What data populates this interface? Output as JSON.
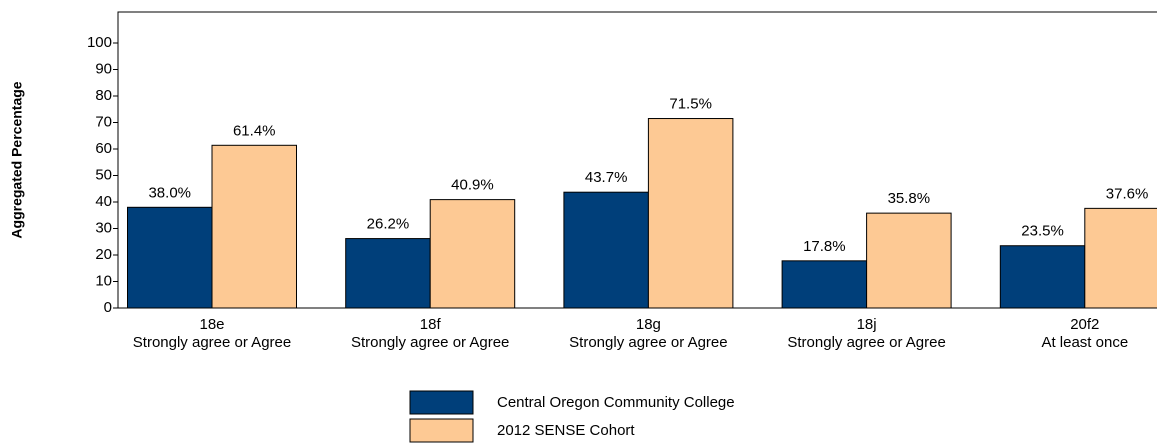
{
  "chart_data": {
    "type": "bar",
    "y_label": "Aggregated Percentage",
    "categories": [
      [
        "18e",
        "Strongly agree or Agree"
      ],
      [
        "18f",
        "Strongly agree or Agree"
      ],
      [
        "18g",
        "Strongly agree or Agree"
      ],
      [
        "18j",
        "Strongly agree or Agree"
      ],
      [
        "20f2",
        "At least once"
      ]
    ],
    "series": [
      {
        "name": "Central Oregon Community College",
        "color": "#003f7a",
        "values": [
          38.0,
          26.2,
          43.7,
          17.8,
          23.5
        ],
        "value_labels": [
          "38.0%",
          "26.2%",
          "43.7%",
          "17.8%",
          "23.5%"
        ]
      },
      {
        "name": "2012 SENSE Cohort",
        "color": "#fdc994",
        "values": [
          61.4,
          40.9,
          71.5,
          35.8,
          37.6
        ],
        "value_labels": [
          "61.4%",
          "40.9%",
          "71.5%",
          "35.8%",
          "37.6%"
        ]
      }
    ],
    "ylim": [
      0,
      111.7
    ],
    "yticks": [
      0,
      10,
      20,
      30,
      40,
      50,
      60,
      70,
      80,
      90,
      100
    ]
  }
}
